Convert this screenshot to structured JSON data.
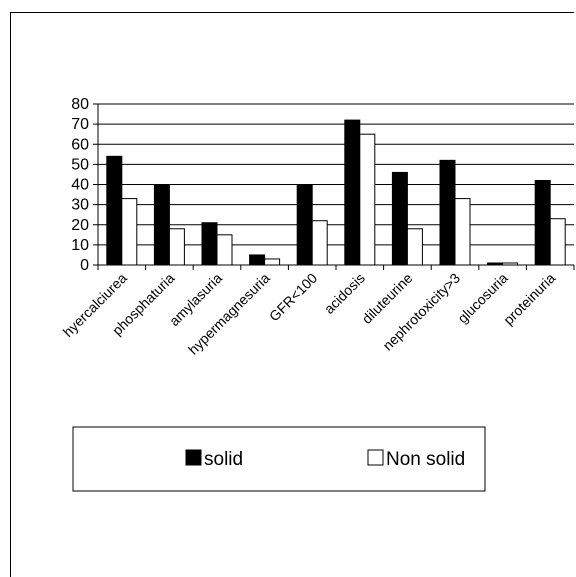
{
  "chart_data": {
    "type": "bar",
    "title": "",
    "xlabel": "",
    "ylabel": "",
    "ylim": [
      0,
      80
    ],
    "yticks": [
      0,
      10,
      20,
      30,
      40,
      50,
      60,
      70,
      80
    ],
    "grid": true,
    "legend_position": "bottom",
    "categories": [
      "hyercalciurea",
      "phosphaturia",
      "amylasuria",
      "hypermagnesuria",
      "GFR<100",
      "acidosis",
      "diluteurine",
      "nephrotoxicity>3",
      "glucosuria",
      "proteinuria"
    ],
    "series": [
      {
        "name": "solid",
        "color": "#000000",
        "values": [
          54,
          40,
          21,
          5,
          40,
          72,
          46,
          52,
          1,
          42
        ]
      },
      {
        "name": "Non solid",
        "color": "#ffffff",
        "values": [
          33,
          18,
          15,
          3,
          22,
          65,
          18,
          33,
          1,
          23
        ]
      }
    ]
  }
}
